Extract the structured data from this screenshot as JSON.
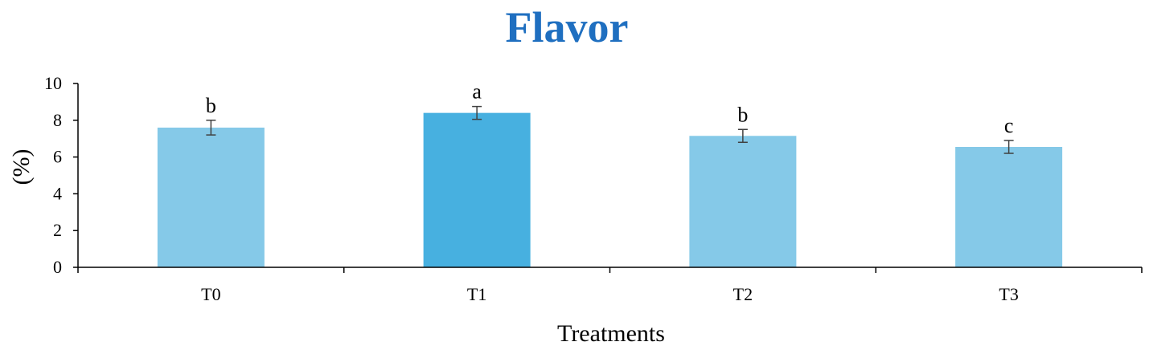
{
  "chart_data": {
    "type": "bar",
    "title": "Flavor",
    "xlabel": "Treatments",
    "ylabel": "(%)",
    "categories": [
      "T0",
      "T1",
      "T2",
      "T3"
    ],
    "values": [
      7.6,
      8.4,
      7.15,
      6.55
    ],
    "errors": [
      0.4,
      0.35,
      0.35,
      0.35
    ],
    "significance_letters": [
      "b",
      "a",
      "b",
      "c"
    ],
    "ylim": [
      0,
      10
    ],
    "yticks": [
      0,
      2,
      4,
      6,
      8,
      10
    ],
    "grid": false,
    "legend": "none",
    "colors": {
      "title": "#1f6fc0",
      "bar_default": "#85c9e8",
      "bar_highlight": "#47b0e0",
      "axis": "#000000"
    },
    "bar_colors": [
      "#85c9e8",
      "#47b0e0",
      "#85c9e8",
      "#85c9e8"
    ]
  }
}
